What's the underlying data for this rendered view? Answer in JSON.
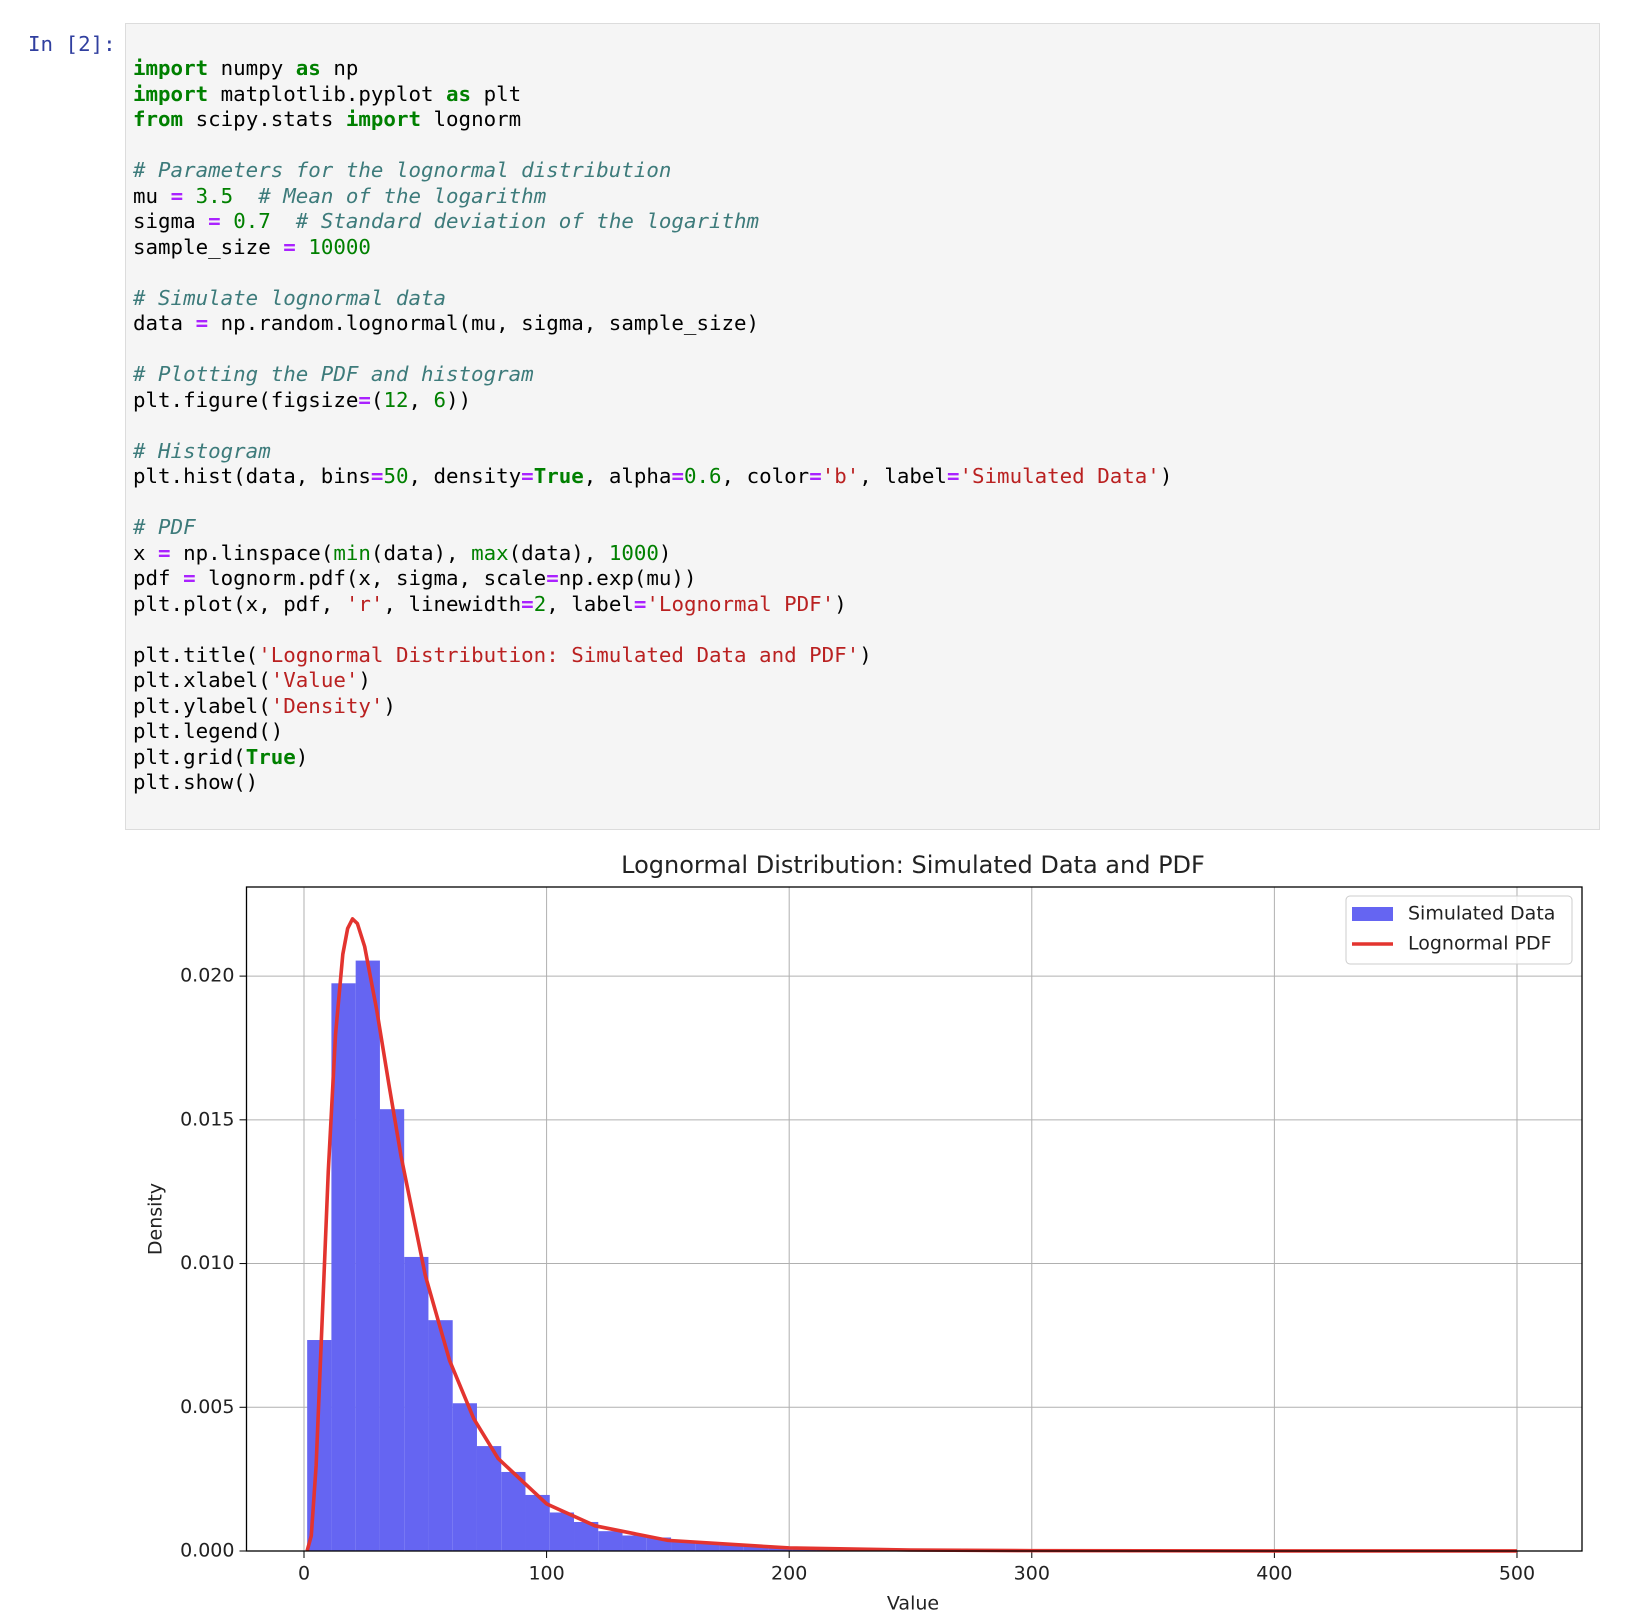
{
  "cell": {
    "prompt": "In [2]:",
    "lines": [
      [
        {
          "t": "import",
          "c": "#008000",
          "s": "bold"
        },
        " numpy ",
        {
          "t": "as",
          "c": "#008000",
          "s": "bold"
        },
        " np"
      ],
      [
        {
          "t": "import",
          "c": "#008000",
          "s": "bold"
        },
        " matplotlib.pyplot ",
        {
          "t": "as",
          "c": "#008000",
          "s": "bold"
        },
        " plt"
      ],
      [
        {
          "t": "from",
          "c": "#008000",
          "s": "bold"
        },
        " scipy.stats ",
        {
          "t": "import",
          "c": "#008000",
          "s": "bold"
        },
        " lognorm"
      ],
      [],
      [
        {
          "t": "# Parameters for the lognormal distribution",
          "c": "#3d7b7b",
          "s": "italic"
        }
      ],
      [
        "mu ",
        {
          "t": "=",
          "c": "#aa22ff",
          "s": "bold"
        },
        " ",
        {
          "t": "3.5",
          "c": "#008000"
        },
        "  ",
        {
          "t": "# Mean of the logarithm",
          "c": "#3d7b7b",
          "s": "italic"
        }
      ],
      [
        "sigma ",
        {
          "t": "=",
          "c": "#aa22ff",
          "s": "bold"
        },
        " ",
        {
          "t": "0.7",
          "c": "#008000"
        },
        "  ",
        {
          "t": "# Standard deviation of the logarithm",
          "c": "#3d7b7b",
          "s": "italic"
        }
      ],
      [
        "sample_size ",
        {
          "t": "=",
          "c": "#aa22ff",
          "s": "bold"
        },
        " ",
        {
          "t": "10000",
          "c": "#008000"
        }
      ],
      [],
      [
        {
          "t": "# Simulate lognormal data",
          "c": "#3d7b7b",
          "s": "italic"
        }
      ],
      [
        "data ",
        {
          "t": "=",
          "c": "#aa22ff",
          "s": "bold"
        },
        " np.random.lognormal(mu, sigma, sample_size)"
      ],
      [],
      [
        {
          "t": "# Plotting the PDF and histogram",
          "c": "#3d7b7b",
          "s": "italic"
        }
      ],
      [
        "plt.figure(figsize",
        {
          "t": "=",
          "c": "#aa22ff",
          "s": "bold"
        },
        "(",
        {
          "t": "12",
          "c": "#008000"
        },
        ", ",
        {
          "t": "6",
          "c": "#008000"
        },
        "))"
      ],
      [],
      [
        {
          "t": "# Histogram",
          "c": "#3d7b7b",
          "s": "italic"
        }
      ],
      [
        "plt.hist(data, bins",
        {
          "t": "=",
          "c": "#aa22ff",
          "s": "bold"
        },
        {
          "t": "50",
          "c": "#008000"
        },
        ", density",
        {
          "t": "=",
          "c": "#aa22ff",
          "s": "bold"
        },
        {
          "t": "True",
          "c": "#008000",
          "s": "bold"
        },
        ", alpha",
        {
          "t": "=",
          "c": "#aa22ff",
          "s": "bold"
        },
        {
          "t": "0.6",
          "c": "#008000"
        },
        ", color",
        {
          "t": "=",
          "c": "#aa22ff",
          "s": "bold"
        },
        {
          "t": "'b'",
          "c": "#ba2121"
        },
        ", label",
        {
          "t": "=",
          "c": "#aa22ff",
          "s": "bold"
        },
        {
          "t": "'Simulated Data'",
          "c": "#ba2121"
        },
        ")"
      ],
      [],
      [
        {
          "t": "# PDF",
          "c": "#3d7b7b",
          "s": "italic"
        }
      ],
      [
        "x ",
        {
          "t": "=",
          "c": "#aa22ff",
          "s": "bold"
        },
        " np.linspace(",
        {
          "t": "min",
          "c": "#008000"
        },
        "(data), ",
        {
          "t": "max",
          "c": "#008000"
        },
        "(data), ",
        {
          "t": "1000",
          "c": "#008000"
        },
        ")"
      ],
      [
        "pdf ",
        {
          "t": "=",
          "c": "#aa22ff",
          "s": "bold"
        },
        " lognorm.pdf(x, sigma, scale",
        {
          "t": "=",
          "c": "#aa22ff",
          "s": "bold"
        },
        "np.exp(mu))"
      ],
      [
        "plt.plot(x, pdf, ",
        {
          "t": "'r'",
          "c": "#ba2121"
        },
        ", linewidth",
        {
          "t": "=",
          "c": "#aa22ff",
          "s": "bold"
        },
        {
          "t": "2",
          "c": "#008000"
        },
        ", label",
        {
          "t": "=",
          "c": "#aa22ff",
          "s": "bold"
        },
        {
          "t": "'Lognormal PDF'",
          "c": "#ba2121"
        },
        ")"
      ],
      [],
      [
        "plt.title(",
        {
          "t": "'Lognormal Distribution: Simulated Data and PDF'",
          "c": "#ba2121"
        },
        ")"
      ],
      [
        "plt.xlabel(",
        {
          "t": "'Value'",
          "c": "#ba2121"
        },
        ")"
      ],
      [
        "plt.ylabel(",
        {
          "t": "'Density'",
          "c": "#ba2121"
        },
        ")"
      ],
      [
        "plt.legend()"
      ],
      [
        "plt.grid(",
        {
          "t": "True",
          "c": "#008000",
          "s": "bold"
        },
        ")"
      ],
      [
        "plt.show()"
      ]
    ]
  },
  "chart_data": {
    "type": "histogram",
    "title": "Lognormal Distribution: Simulated Data and PDF",
    "xlabel": "Value",
    "ylabel": "Density",
    "grid": true,
    "legend": "upper right",
    "xlim": [
      -23.7,
      526.8
    ],
    "xticks": [
      0,
      100,
      200,
      300,
      400,
      500
    ],
    "ylim": [
      0,
      0.0231
    ],
    "yticks": [
      {
        "value": 0,
        "label": "0.000"
      },
      {
        "value": 0.005,
        "label": "0.005"
      },
      {
        "value": 0.01,
        "label": "0.010"
      },
      {
        "value": 0.015,
        "label": "0.015"
      },
      {
        "value": 0.02,
        "label": "0.020"
      }
    ],
    "series": [
      {
        "name": "Simulated Data",
        "type": "histogram",
        "color": "#6565f2",
        "bins": [
          1.3,
          11.3,
          21.3,
          31.3,
          41.3,
          51.3,
          61.3,
          71.3,
          81.3,
          91.3,
          101.3,
          111.3,
          121.3,
          131.3,
          141.3,
          151.3,
          161.3,
          171.3,
          181.3,
          191.3,
          201.3,
          211.3,
          221.3,
          231.3,
          241.3,
          251.3,
          261.3,
          271.3,
          281.3,
          291.3,
          301.3,
          311.3,
          321.3,
          331.3,
          341.3,
          351.3,
          361.3,
          371.3,
          381.3,
          391.3,
          401.3,
          411.3,
          421.3,
          431.3,
          441.3,
          451.3,
          461.3,
          471.3,
          481.3,
          491.3,
          501.3
        ],
        "values": [
          0.00734,
          0.01975,
          0.02054,
          0.01537,
          0.01023,
          0.00803,
          0.00514,
          0.00365,
          0.00275,
          0.00195,
          0.00134,
          0.00101,
          0.00069,
          0.00054,
          0.00047,
          0.00035,
          0.00028,
          0.00022,
          0.00017,
          0.00013,
          0.0001,
          8e-05,
          6e-05,
          5e-05,
          4e-05,
          3e-05,
          3e-05,
          2e-05,
          2e-05,
          2e-05,
          1e-05,
          1e-05,
          1e-05,
          1e-05,
          1e-05,
          1e-05,
          0,
          1e-05,
          0,
          0,
          0,
          0,
          0,
          0,
          0,
          0,
          0,
          0,
          0,
          1e-05
        ]
      },
      {
        "name": "Lognormal PDF",
        "type": "line",
        "color": "#e3342f",
        "x": [
          1.3,
          3,
          5,
          8,
          10,
          13,
          16,
          18,
          20,
          22,
          25,
          30,
          35,
          40,
          50,
          60,
          70,
          80,
          100,
          120,
          150,
          200,
          250,
          300,
          400,
          500
        ],
        "values": [
          1e-05,
          0.000529,
          0.00297,
          0.00908,
          0.01319,
          0.01797,
          0.02076,
          0.02166,
          0.02199,
          0.02183,
          0.02103,
          0.01881,
          0.01623,
          0.01374,
          0.00959,
          0.00663,
          0.0046,
          0.00322,
          0.00164,
          0.000876,
          0.00037,
          0.000105,
          3.52e-05,
          1.34e-05,
          2.5e-06,
          6e-07
        ]
      }
    ]
  }
}
